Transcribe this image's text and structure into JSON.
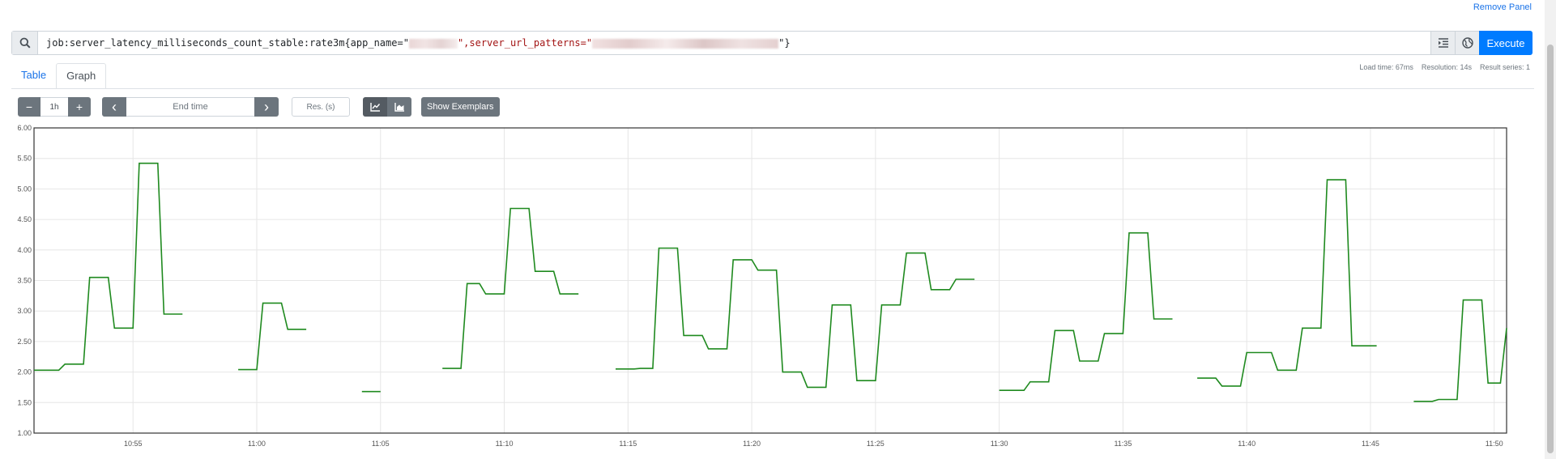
{
  "panel": {
    "remove_label": "Remove Panel"
  },
  "expression": {
    "prefix": "job:server_latency_milliseconds_count_stable:rate3m{app_name=\"",
    "mid": "\",server_url_patterns=\"",
    "suffix": "\"}",
    "execute_label": "Execute"
  },
  "tabs": [
    {
      "label": "Table"
    },
    {
      "label": "Graph"
    }
  ],
  "stats": {
    "load_time": "Load time: 67ms",
    "resolution": "Resolution: 14s",
    "result_series": "Result series: 1"
  },
  "controls": {
    "minus": "−",
    "range": "1h",
    "plus": "+",
    "prev": "‹",
    "end_time_placeholder": "End time",
    "next": "›",
    "res_placeholder": "Res. (s)",
    "show_exemplars": "Show Exemplars"
  },
  "icons": {
    "search": "search-icon",
    "format": "format-indent-icon",
    "metrics": "globe-icon",
    "line_chart": "line-chart-icon",
    "stacked_chart": "area-chart-icon"
  },
  "colors": {
    "series": "#1f8a1f",
    "accent": "#007bff"
  },
  "chart_data": {
    "type": "line",
    "title": "",
    "xlabel": "",
    "ylabel": "",
    "ylim": [
      1.0,
      6.0
    ],
    "xlim": [
      "10:51",
      "11:50:30"
    ],
    "y_ticks": [
      "1.00",
      "1.50",
      "2.00",
      "2.50",
      "3.00",
      "3.50",
      "4.00",
      "4.50",
      "5.00",
      "5.50",
      "6.00"
    ],
    "x_ticks": [
      "10:55",
      "11:00",
      "11:05",
      "11:10",
      "11:15",
      "11:20",
      "11:25",
      "11:30",
      "11:35",
      "11:40",
      "11:45",
      "11:50"
    ],
    "grid": true,
    "series": [
      {
        "name": "",
        "segments": [
          [
            [
              "10:51",
              2.03
            ],
            [
              "10:52",
              2.03
            ],
            [
              "10:52:15",
              2.13
            ],
            [
              "10:53",
              2.13
            ],
            [
              "10:53:15",
              3.55
            ],
            [
              "10:54",
              3.55
            ],
            [
              "10:54:15",
              2.72
            ],
            [
              "10:55",
              2.72
            ],
            [
              "10:55:15",
              5.42
            ],
            [
              "10:56",
              5.42
            ],
            [
              "10:56:15",
              2.95
            ],
            [
              "10:57",
              2.95
            ]
          ],
          [
            [
              "10:59:15",
              2.04
            ],
            [
              "11:00",
              2.04
            ],
            [
              "11:00:15",
              3.13
            ],
            [
              "11:01",
              3.13
            ],
            [
              "11:01:15",
              2.7
            ],
            [
              "11:02",
              2.7
            ]
          ],
          [
            [
              "11:04:15",
              1.68
            ],
            [
              "11:05",
              1.68
            ]
          ],
          [
            [
              "11:07:30",
              2.06
            ],
            [
              "11:08:15",
              2.06
            ],
            [
              "11:08:30",
              3.45
            ],
            [
              "11:09",
              3.45
            ],
            [
              "11:09:15",
              3.28
            ],
            [
              "11:10",
              3.28
            ],
            [
              "11:10:15",
              4.68
            ],
            [
              "11:11",
              4.68
            ],
            [
              "11:11:15",
              3.65
            ],
            [
              "11:12",
              3.65
            ],
            [
              "11:12:15",
              3.28
            ],
            [
              "11:13",
              3.28
            ]
          ],
          [
            [
              "11:14:30",
              2.05
            ],
            [
              "11:15:15",
              2.05
            ],
            [
              "11:15:30",
              2.06
            ],
            [
              "11:16",
              2.06
            ],
            [
              "11:16:15",
              4.03
            ],
            [
              "11:17",
              4.03
            ],
            [
              "11:17:15",
              2.6
            ],
            [
              "11:18",
              2.6
            ],
            [
              "11:18:15",
              2.38
            ],
            [
              "11:19",
              2.38
            ],
            [
              "11:19:15",
              3.84
            ],
            [
              "11:20",
              3.84
            ],
            [
              "11:20:15",
              3.67
            ],
            [
              "11:21",
              3.67
            ],
            [
              "11:21:15",
              2.0
            ],
            [
              "11:22",
              2.0
            ],
            [
              "11:22:15",
              1.75
            ],
            [
              "11:23",
              1.75
            ],
            [
              "11:23:15",
              3.1
            ],
            [
              "11:24",
              3.1
            ],
            [
              "11:24:15",
              1.86
            ],
            [
              "11:25",
              1.86
            ],
            [
              "11:25:15",
              3.1
            ],
            [
              "11:26",
              3.1
            ],
            [
              "11:26:15",
              3.95
            ],
            [
              "11:27",
              3.95
            ],
            [
              "11:27:15",
              3.35
            ],
            [
              "11:28",
              3.35
            ],
            [
              "11:28:15",
              3.52
            ],
            [
              "11:29",
              3.52
            ]
          ],
          [
            [
              "11:30",
              1.7
            ],
            [
              "11:31",
              1.7
            ],
            [
              "11:31:15",
              1.84
            ],
            [
              "11:32",
              1.84
            ],
            [
              "11:32:15",
              2.68
            ],
            [
              "11:33",
              2.68
            ],
            [
              "11:33:15",
              2.18
            ],
            [
              "11:34",
              2.18
            ],
            [
              "11:34:15",
              2.63
            ],
            [
              "11:35",
              2.63
            ],
            [
              "11:35:15",
              4.28
            ],
            [
              "11:36",
              4.28
            ],
            [
              "11:36:15",
              2.87
            ],
            [
              "11:37",
              2.87
            ]
          ],
          [
            [
              "11:38",
              1.9
            ],
            [
              "11:38:45",
              1.9
            ],
            [
              "11:39",
              1.77
            ],
            [
              "11:39:45",
              1.77
            ],
            [
              "11:40",
              2.32
            ],
            [
              "11:41",
              2.32
            ],
            [
              "11:41:15",
              2.03
            ],
            [
              "11:42",
              2.03
            ],
            [
              "11:42:15",
              2.72
            ],
            [
              "11:43",
              2.72
            ],
            [
              "11:43:15",
              5.15
            ],
            [
              "11:44",
              5.15
            ],
            [
              "11:44:15",
              2.43
            ],
            [
              "11:45:15",
              2.43
            ]
          ],
          [
            [
              "11:46:45",
              1.52
            ],
            [
              "11:47:30",
              1.52
            ],
            [
              "11:47:45",
              1.55
            ],
            [
              "11:48:30",
              1.55
            ],
            [
              "11:48:45",
              3.18
            ],
            [
              "11:49:30",
              3.18
            ],
            [
              "11:49:45",
              1.82
            ],
            [
              "11:50:15",
              1.82
            ],
            [
              "11:50:30",
              2.72
            ]
          ]
        ]
      }
    ]
  }
}
